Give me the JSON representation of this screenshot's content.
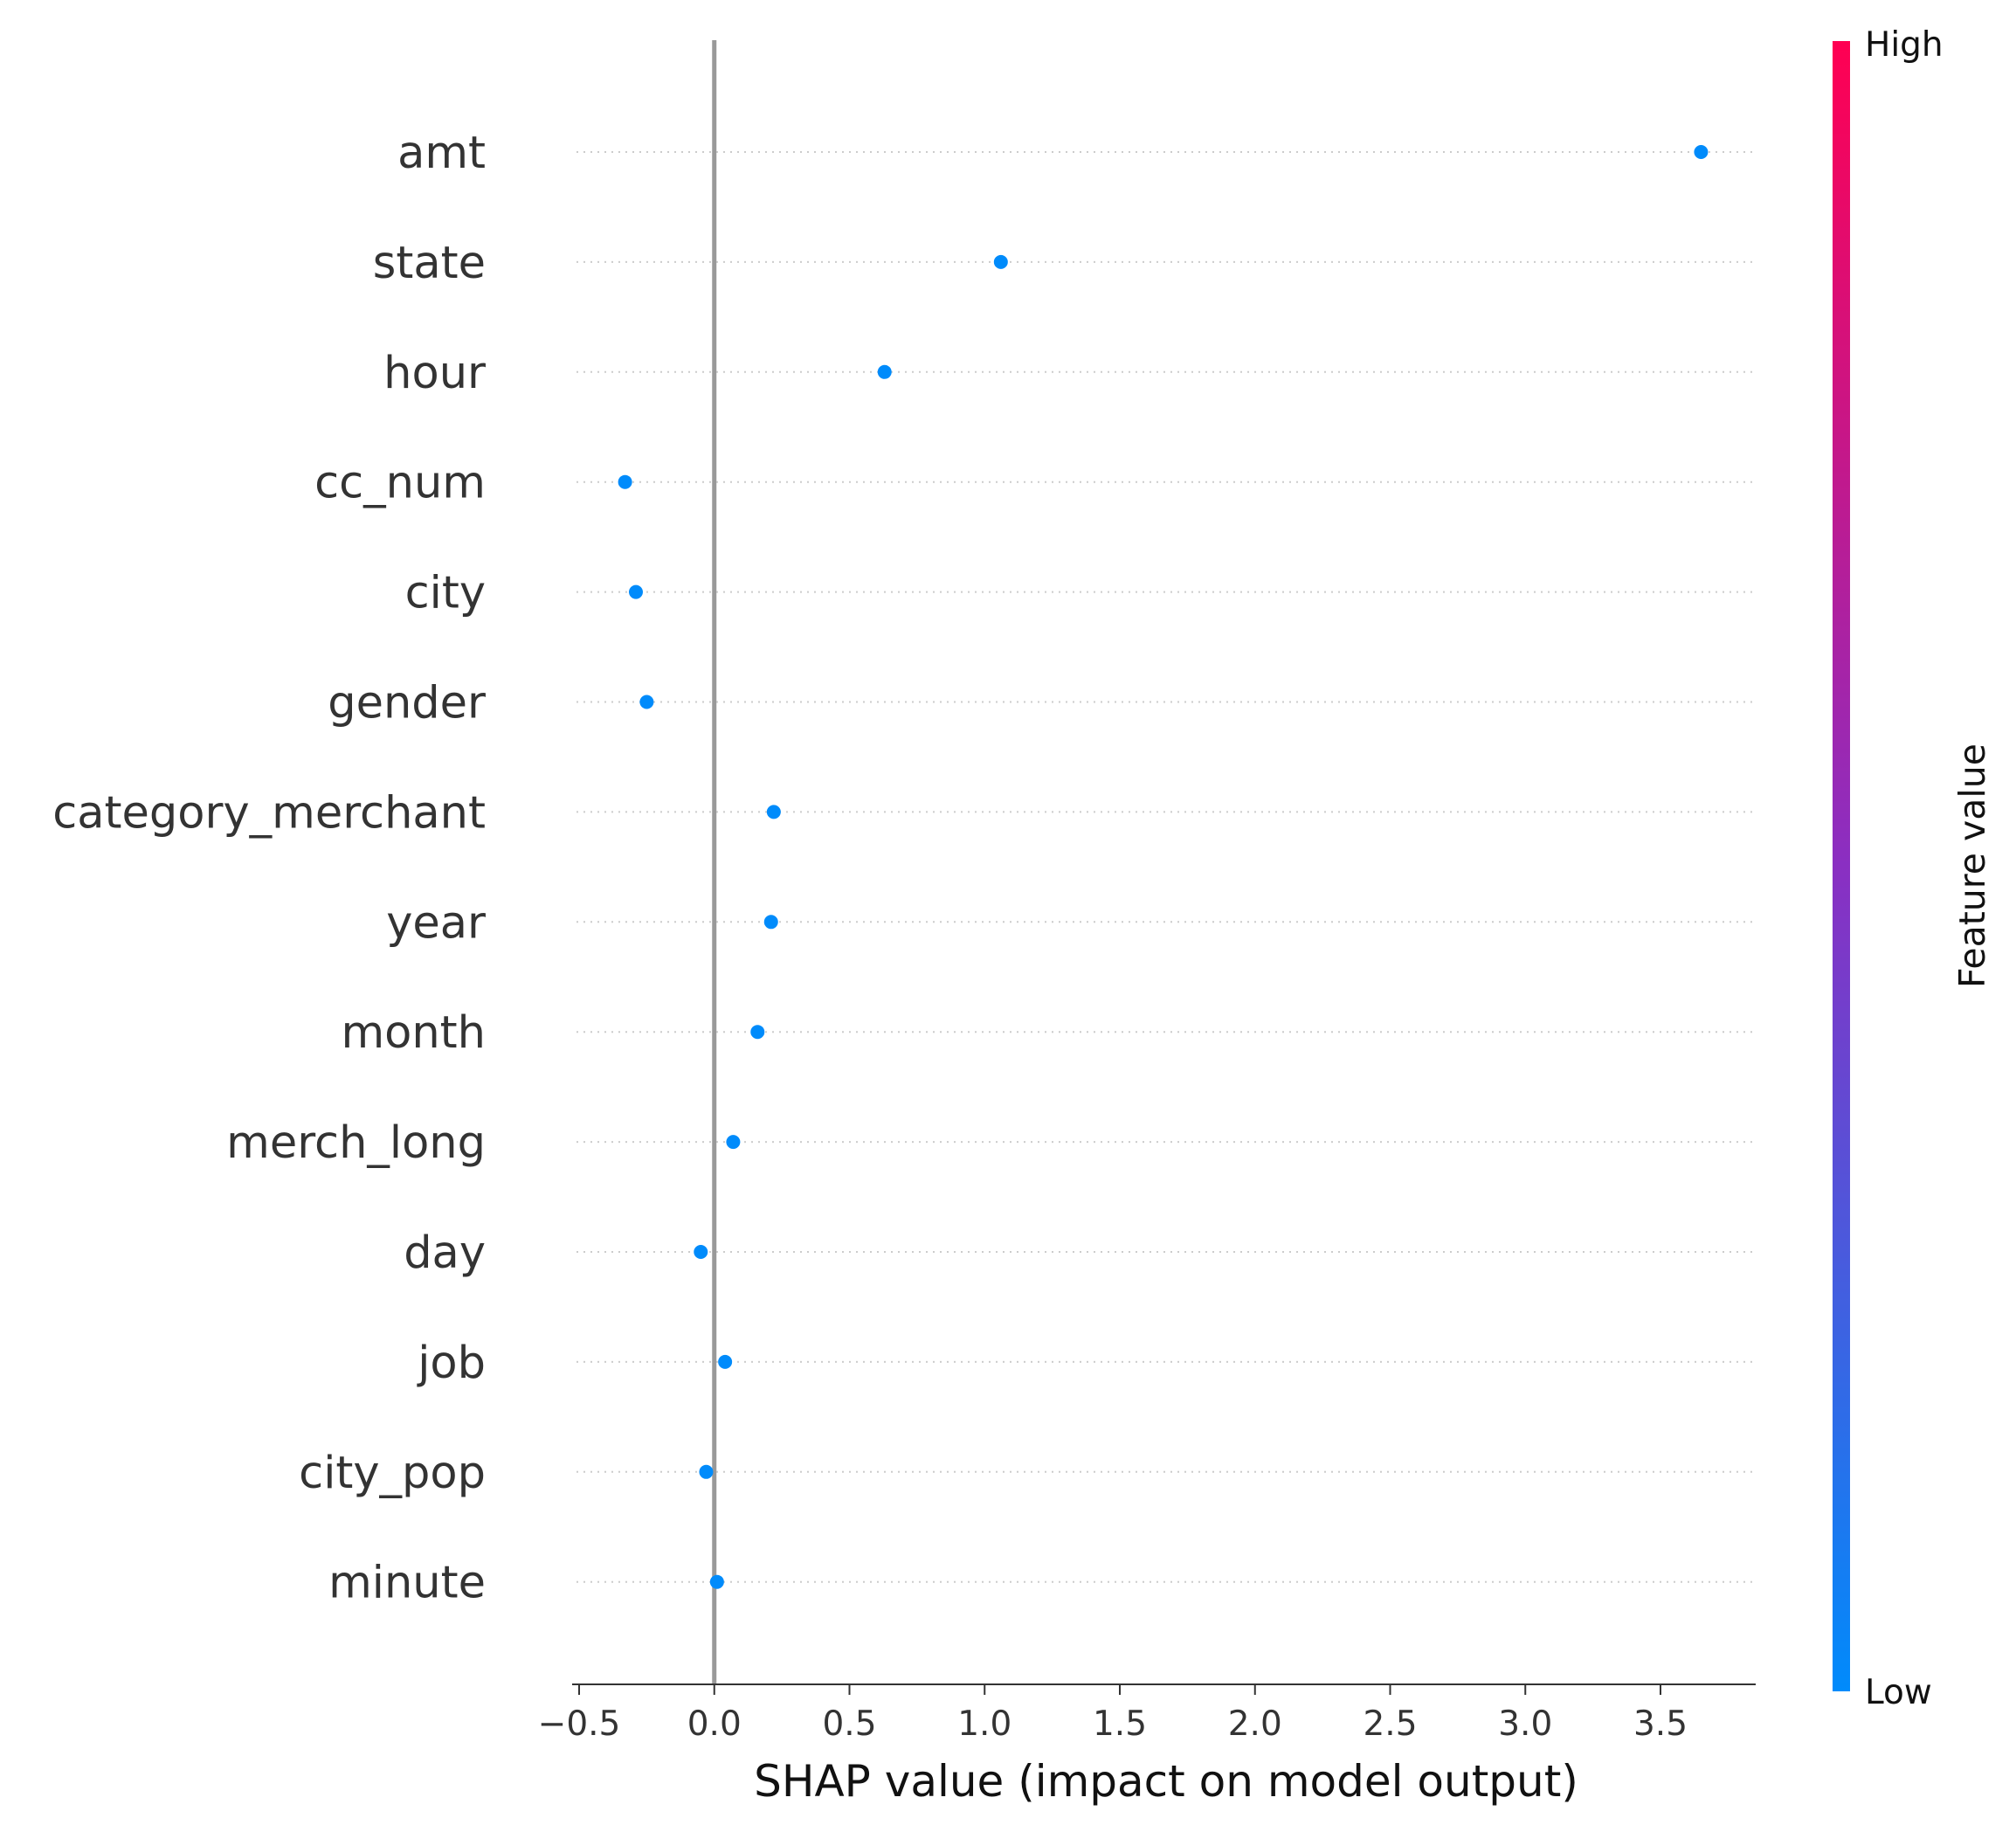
{
  "chart_data": {
    "type": "scatter",
    "title": "",
    "xlabel": "SHAP value (impact on model output)",
    "ylabel": "",
    "xlim": [
      -0.52,
      3.85
    ],
    "xticks": [
      "−0.5",
      "0.0",
      "0.5",
      "1.0",
      "1.5",
      "2.0",
      "2.5",
      "3.0",
      "3.5"
    ],
    "xtick_values": [
      -0.5,
      0.0,
      0.5,
      1.0,
      1.5,
      2.0,
      2.5,
      3.0,
      3.5
    ],
    "features": [
      "amt",
      "state",
      "hour",
      "cc_num",
      "city",
      "gender",
      "category_merchant",
      "year",
      "month",
      "merch_long",
      "day",
      "job",
      "city_pop",
      "minute"
    ],
    "values": [
      3.65,
      1.06,
      0.63,
      -0.33,
      -0.29,
      -0.25,
      0.22,
      0.21,
      0.16,
      0.07,
      -0.05,
      0.04,
      -0.03,
      0.01
    ],
    "point_color": "#008bfb",
    "zero_line_color": "#999999",
    "grid": "dotted horizontal",
    "colorbar": {
      "title": "Feature value",
      "high_label": "High",
      "low_label": "Low",
      "high_color": "#ff0052",
      "mid_color": "#8a2fc2",
      "low_color": "#008bfb"
    }
  }
}
